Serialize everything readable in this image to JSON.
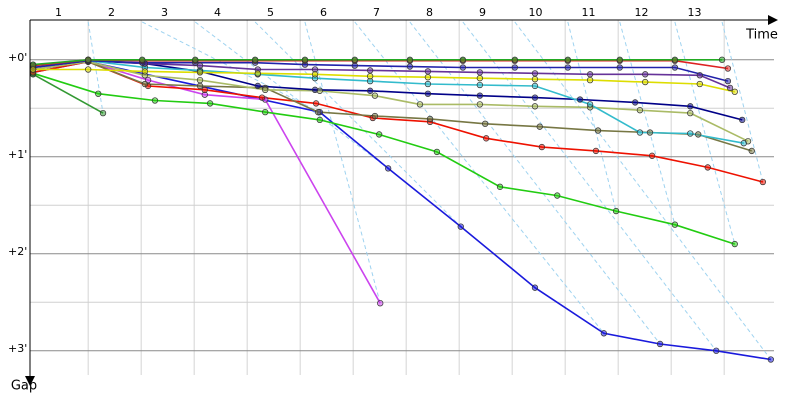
{
  "chart_data": {
    "type": "line",
    "x_label": "Time",
    "y_label": "Gap",
    "xlim": [
      0.5,
      14.5
    ],
    "ylim": [
      -0.41,
      3.25
    ],
    "xticks": [
      1,
      2,
      3,
      4,
      5,
      6,
      7,
      8,
      9,
      10,
      11,
      12,
      13
    ],
    "yticks": [
      {
        "value": 0,
        "label": "+0'"
      },
      {
        "value": 1,
        "label": "+1'"
      },
      {
        "value": 2,
        "label": "+2'"
      },
      {
        "value": 3,
        "label": "+3'"
      }
    ],
    "yminor": [
      0.5,
      1.5,
      2.5
    ],
    "grid": true,
    "series": [
      {
        "color": "#1a1adc",
        "x": [
          0.52,
          1.56,
          5.93,
          7.22,
          8.59,
          9.99,
          11.29,
          12.35,
          13.41,
          14.44
        ],
        "values": [
          0.13,
          0.02,
          0.54,
          1.12,
          1.72,
          2.35,
          2.82,
          2.93,
          3.0,
          3.09
        ]
      },
      {
        "color": "#cc44ee",
        "x": [
          0.52,
          1.56,
          2.69,
          3.76,
          4.9,
          7.07
        ],
        "values": [
          0.1,
          0.02,
          0.21,
          0.36,
          0.41,
          2.51
        ]
      },
      {
        "color": "#22cc11",
        "x": [
          0.52,
          1.75,
          2.82,
          3.86,
          4.9,
          5.93,
          7.05,
          8.14,
          9.33,
          10.41,
          11.52,
          12.63,
          13.76
        ],
        "values": [
          0.14,
          0.35,
          0.42,
          0.45,
          0.54,
          0.62,
          0.77,
          0.95,
          1.31,
          1.4,
          1.56,
          1.7,
          1.9
        ]
      },
      {
        "color": "#339933",
        "x": [
          0.52,
          1.84
        ],
        "values": [
          0.15,
          0.55
        ]
      },
      {
        "color": "#ee1100",
        "x": [
          0.52,
          1.56,
          2.69,
          3.76,
          4.84,
          5.86,
          6.93,
          8.01,
          9.07,
          10.12,
          11.14,
          12.2,
          13.25,
          14.29
        ],
        "values": [
          0.13,
          0.02,
          0.27,
          0.31,
          0.39,
          0.45,
          0.6,
          0.64,
          0.81,
          0.9,
          0.94,
          0.99,
          1.11,
          1.26
        ]
      },
      {
        "color": "#777744",
        "x": [
          0.52,
          1.56,
          2.63,
          3.67,
          4.9,
          5.9,
          6.97,
          8.01,
          9.05,
          10.08,
          11.18,
          12.16,
          13.07,
          14.08
        ],
        "values": [
          0.1,
          0.02,
          0.25,
          0.27,
          0.29,
          0.54,
          0.58,
          0.61,
          0.66,
          0.69,
          0.73,
          0.75,
          0.77,
          0.94
        ]
      },
      {
        "color": "#aabb66",
        "x": [
          0.52,
          1.56,
          2.63,
          3.67,
          4.9,
          5.93,
          6.97,
          7.82,
          8.95,
          9.99,
          11.03,
          11.97,
          12.92,
          14.01
        ],
        "values": [
          0.1,
          0.02,
          0.16,
          0.21,
          0.31,
          0.32,
          0.37,
          0.46,
          0.46,
          0.48,
          0.49,
          0.52,
          0.55,
          0.84
        ]
      },
      {
        "color": "#000088",
        "x": [
          0.52,
          1.56,
          2.63,
          3.67,
          4.76,
          5.84,
          6.88,
          7.97,
          8.95,
          9.99,
          10.84,
          11.88,
          12.92,
          13.9
        ],
        "values": [
          0.08,
          0.01,
          0.04,
          0.12,
          0.27,
          0.31,
          0.32,
          0.35,
          0.37,
          0.39,
          0.41,
          0.44,
          0.48,
          0.62
        ]
      },
      {
        "color": "#33bbcc",
        "x": [
          0.52,
          1.56,
          2.63,
          3.67,
          4.76,
          5.84,
          6.88,
          7.97,
          8.95,
          9.99,
          11.03,
          11.97,
          12.92,
          13.93
        ],
        "values": [
          0.06,
          0.01,
          0.08,
          0.11,
          0.15,
          0.19,
          0.22,
          0.25,
          0.26,
          0.27,
          0.46,
          0.75,
          0.76,
          0.86
        ]
      },
      {
        "color": "#663399",
        "x": [
          0.52,
          1.56,
          2.63,
          3.67,
          4.76,
          5.84,
          6.88,
          7.97,
          8.95,
          9.99,
          11.03,
          12.07,
          13.1,
          13.67
        ],
        "values": [
          0.06,
          0.0,
          0.04,
          0.06,
          0.1,
          0.1,
          0.11,
          0.12,
          0.13,
          0.14,
          0.15,
          0.15,
          0.16,
          0.29
        ]
      },
      {
        "color": "#2222aa",
        "x": [
          0.52,
          1.56,
          2.58,
          3.58,
          4.71,
          5.65,
          6.59,
          7.63,
          8.63,
          9.61,
          10.61,
          11.59,
          12.63,
          13.63
        ],
        "values": [
          0.08,
          0.01,
          0.03,
          0.03,
          0.03,
          0.05,
          0.06,
          0.07,
          0.08,
          0.08,
          0.08,
          0.08,
          0.08,
          0.22
        ]
      },
      {
        "color": "#dd2222",
        "x": [
          0.52,
          1.56,
          2.58,
          3.58,
          4.71,
          5.65,
          6.59,
          7.63,
          8.63,
          9.61,
          10.61,
          11.59,
          12.63,
          13.63
        ],
        "values": [
          0.06,
          0.0,
          0.01,
          0.01,
          0.01,
          0.01,
          0.01,
          0.01,
          0.01,
          0.01,
          0.01,
          0.01,
          0.01,
          0.09
        ]
      },
      {
        "color": "#22aa22",
        "x": [
          0.52,
          1.56,
          2.58,
          3.58,
          4.71,
          5.65,
          6.59,
          7.63,
          8.63,
          9.61,
          10.61,
          11.59,
          12.63,
          13.52
        ],
        "values": [
          0.05,
          0.0,
          0.0,
          0.0,
          0.0,
          0.0,
          0.0,
          0.0,
          0.0,
          0.0,
          0.0,
          0.0,
          0.0,
          0.0
        ]
      },
      {
        "color": "#dddd00",
        "x": [
          0.52,
          1.56,
          2.63,
          3.67,
          4.76,
          5.84,
          6.88,
          7.97,
          8.95,
          9.99,
          11.03,
          12.07,
          13.1,
          13.76
        ],
        "values": [
          0.1,
          0.1,
          0.12,
          0.13,
          0.14,
          0.15,
          0.17,
          0.18,
          0.19,
          0.2,
          0.21,
          0.23,
          0.25,
          0.33
        ]
      }
    ]
  }
}
